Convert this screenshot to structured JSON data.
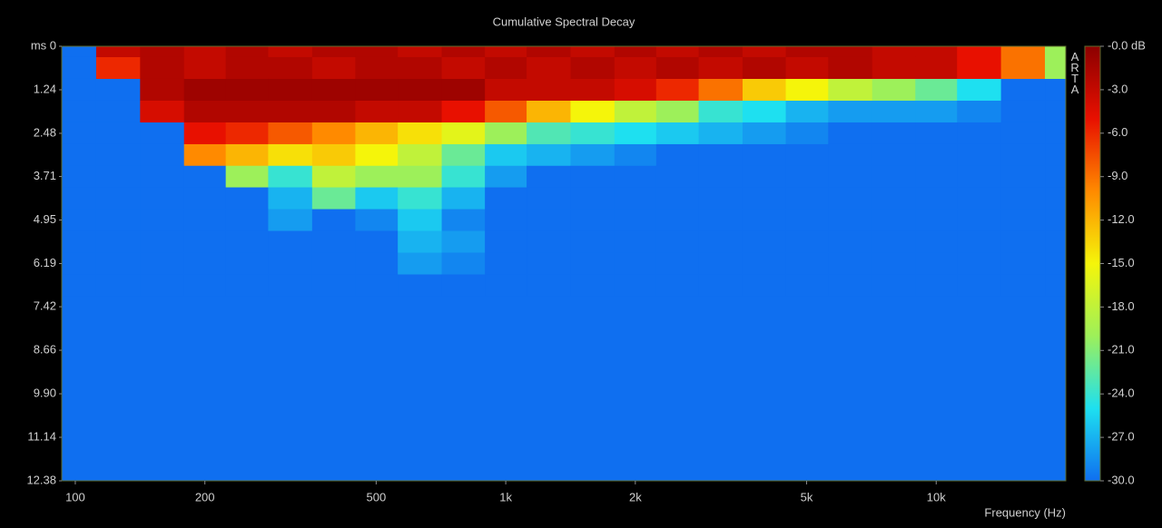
{
  "chart_data": {
    "type": "heatmap",
    "title": "Cumulative Spectral Decay",
    "watermark": "ARTA",
    "x_label": "Frequency (Hz)",
    "x_log": true,
    "xlim": [
      93,
      20000
    ],
    "xticks": [
      100,
      200,
      500,
      {
        "value": 1000,
        "label": "1k"
      },
      {
        "value": 2000,
        "label": "2k"
      },
      {
        "value": 5000,
        "label": "5k"
      },
      {
        "value": 10000,
        "label": "10k"
      }
    ],
    "ylim": [
      0,
      12.38
    ],
    "y_inverted": true,
    "yticks": [
      {
        "value": 0,
        "label": "ms 0"
      },
      1.24,
      2.48,
      3.71,
      4.95,
      6.19,
      7.42,
      8.66,
      {
        "value": 9.9,
        "label": "9.90"
      },
      11.14,
      12.38
    ],
    "zlim": [
      -30,
      0
    ],
    "zticks": [
      {
        "value": 0,
        "label": "-0.0 dB"
      },
      {
        "value": -3,
        "label": "-3.0"
      },
      {
        "value": -6,
        "label": "-6.0"
      },
      {
        "value": -9,
        "label": "-9.0"
      },
      {
        "value": -12,
        "label": "-12.0"
      },
      {
        "value": -15,
        "label": "-15.0"
      },
      {
        "value": -18,
        "label": "-18.0"
      },
      {
        "value": -21,
        "label": "-21.0"
      },
      {
        "value": -24,
        "label": "-24.0"
      },
      {
        "value": -27,
        "label": "-27.0"
      },
      {
        "value": -30,
        "label": "-30.0"
      }
    ],
    "colormap": [
      "#0f6ff0",
      "#1ee0f0",
      "#9df05a",
      "#f5f50a",
      "#ff8a00",
      "#e81000",
      "#8c0000"
    ],
    "x": [
      100,
      125,
      160,
      200,
      250,
      315,
      400,
      500,
      630,
      800,
      1000,
      1250,
      1600,
      2000,
      2500,
      3150,
      4000,
      5000,
      6300,
      8000,
      10000,
      12500,
      16000,
      20000
    ],
    "y": [
      0,
      0.62,
      1.24,
      1.86,
      2.48,
      3.1,
      3.71,
      4.33,
      4.95,
      5.57,
      6.19,
      6.81
    ],
    "values": [
      [
        -30,
        -3,
        -2,
        -3,
        -2,
        -3,
        -2,
        -2,
        -3,
        -2,
        -3,
        -2,
        -3,
        -2,
        -3,
        -2,
        -3,
        -2,
        -2,
        -3,
        -3,
        -5,
        -9,
        -20
      ],
      [
        -30,
        -6,
        -2,
        -3,
        -2,
        -2,
        -3,
        -2,
        -2,
        -3,
        -2,
        -3,
        -2,
        -3,
        -2,
        -3,
        -2,
        -3,
        -2,
        -3,
        -3,
        -5,
        -9,
        -20
      ],
      [
        -30,
        -30,
        -2,
        -1,
        -1,
        -1,
        -1,
        -1,
        -1,
        -1,
        -3,
        -3,
        -3,
        -4,
        -6,
        -9,
        -13,
        -15,
        -18,
        -20,
        -22,
        -25,
        -30,
        -30
      ],
      [
        -30,
        -30,
        -4,
        -2,
        -2,
        -2,
        -2,
        -3,
        -3,
        -5,
        -8,
        -12,
        -15,
        -18,
        -20,
        -24,
        -25,
        -27,
        -28,
        -28,
        -28,
        -29,
        -30,
        -30
      ],
      [
        -30,
        -30,
        -30,
        -5,
        -6,
        -8,
        -10,
        -12,
        -14,
        -16,
        -20,
        -23,
        -24,
        -25,
        -26,
        -27,
        -28,
        -29,
        -30,
        -30,
        -30,
        -30,
        -30,
        -30
      ],
      [
        -30,
        -30,
        -30,
        -10,
        -12,
        -14,
        -13,
        -15,
        -18,
        -22,
        -26,
        -27,
        -28,
        -29,
        -30,
        -30,
        -30,
        -30,
        -30,
        -30,
        -30,
        -30,
        -30,
        -30
      ],
      [
        -30,
        -30,
        -30,
        -30,
        -20,
        -24,
        -18,
        -20,
        -20,
        -24,
        -28,
        -30,
        -30,
        -30,
        -30,
        -30,
        -30,
        -30,
        -30,
        -30,
        -30,
        -30,
        -30,
        -30
      ],
      [
        -30,
        -30,
        -30,
        -30,
        -30,
        -27,
        -22,
        -26,
        -24,
        -27,
        -30,
        -30,
        -30,
        -30,
        -30,
        -30,
        -30,
        -30,
        -30,
        -30,
        -30,
        -30,
        -30,
        -30
      ],
      [
        -30,
        -30,
        -30,
        -30,
        -30,
        -28,
        -30,
        -29,
        -26,
        -29,
        -30,
        -30,
        -30,
        -30,
        -30,
        -30,
        -30,
        -30,
        -30,
        -30,
        -30,
        -30,
        -30,
        -30
      ],
      [
        -30,
        -30,
        -30,
        -30,
        -30,
        -30,
        -30,
        -30,
        -27,
        -28,
        -30,
        -30,
        -30,
        -30,
        -30,
        -30,
        -30,
        -30,
        -30,
        -30,
        -30,
        -30,
        -30,
        -30
      ],
      [
        -30,
        -30,
        -30,
        -30,
        -30,
        -30,
        -30,
        -30,
        -28,
        -29,
        -30,
        -30,
        -30,
        -30,
        -30,
        -30,
        -30,
        -30,
        -30,
        -30,
        -30,
        -30,
        -30,
        -30
      ],
      [
        -30,
        -30,
        -30,
        -30,
        -30,
        -30,
        -30,
        -30,
        -30,
        -30,
        -30,
        -30,
        -30,
        -30,
        -30,
        -30,
        -30,
        -30,
        -30,
        -30,
        -30,
        -30,
        -30,
        -30
      ]
    ]
  }
}
